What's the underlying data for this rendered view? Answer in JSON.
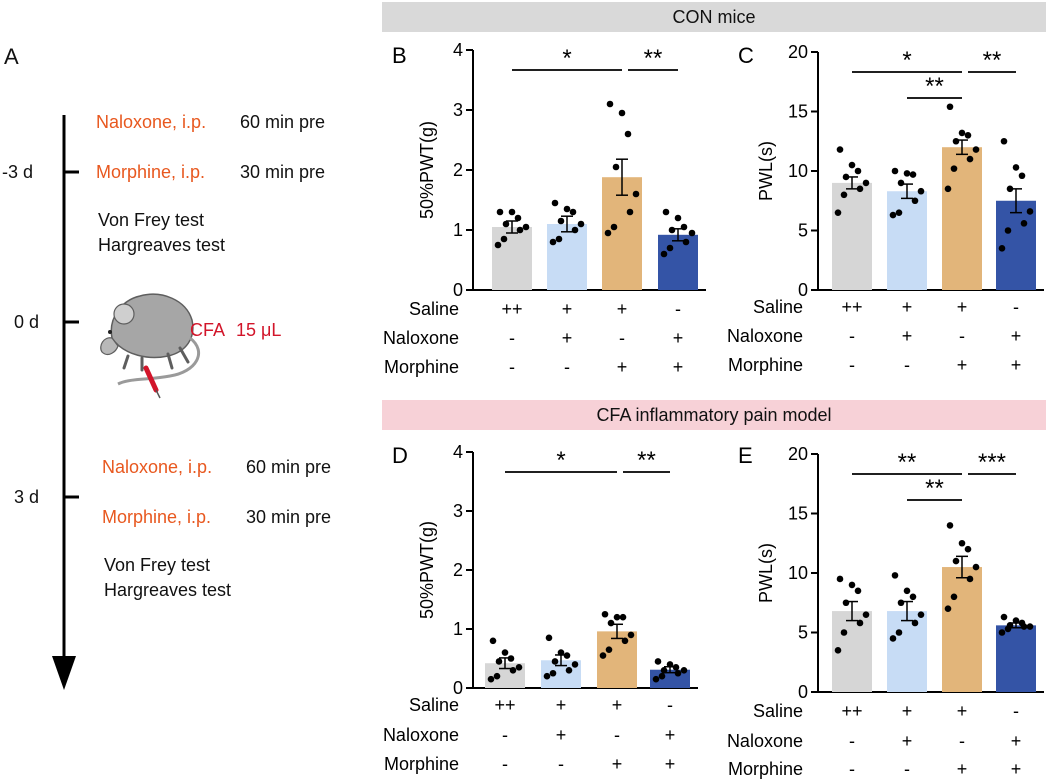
{
  "banners": {
    "con": "CON mice",
    "cfa": "CFA inflammatory pain model"
  },
  "panel_a": {
    "letter": "A",
    "days": [
      "-3 d",
      "0 d",
      "3 d"
    ],
    "block1": {
      "naloxone": "Naloxone, i.p.",
      "naloxone_time": "60 min pre",
      "morphine": "Morphine, i.p.",
      "morphine_time": "30 min pre",
      "test1": "Von Frey test",
      "test2": "Hargreaves test"
    },
    "cfa": {
      "label": "CFA",
      "dose": "15 μL"
    },
    "block2": {
      "naloxone": "Naloxone, i.p.",
      "naloxone_time": "60 min pre",
      "morphine": "Morphine, i.p.",
      "morphine_time": "30 min pre",
      "test1": "Von Frey test",
      "test2": "Hargreaves test"
    }
  },
  "colors": {
    "grey": "#d6d6d6",
    "lightblue": "#c7dcf5",
    "tan": "#e2b57a",
    "navy": "#3454a6",
    "orange_text": "#e8581f",
    "red_text": "#d2152a"
  },
  "chart_data": [
    {
      "id": "B",
      "letter": "B",
      "type": "bar",
      "ylabel": "50%PWT(g)",
      "ylim": [
        0,
        4
      ],
      "yticks": [
        "0",
        "1",
        "2",
        "3",
        "4"
      ],
      "values": [
        1.05,
        1.1,
        1.88,
        0.92
      ],
      "sem": [
        0.1,
        0.13,
        0.3,
        0.1
      ],
      "points": [
        [
          0.75,
          0.85,
          1.0,
          1.05,
          1.1,
          1.2,
          1.3,
          1.3
        ],
        [
          0.8,
          0.85,
          1.0,
          1.1,
          1.15,
          1.3,
          1.35,
          1.45
        ],
        [
          0.95,
          1.05,
          1.3,
          1.6,
          2.05,
          2.6,
          2.95,
          3.1
        ],
        [
          0.6,
          0.7,
          0.8,
          0.95,
          1.0,
          1.05,
          1.2,
          1.3
        ]
      ],
      "rows": [
        {
          "label": "Saline",
          "marks": [
            "++",
            "+",
            "+",
            "-"
          ]
        },
        {
          "label": "Naloxone",
          "marks": [
            "-",
            "+",
            "-",
            "+"
          ]
        },
        {
          "label": "Morphine",
          "marks": [
            "-",
            "-",
            "+",
            "+"
          ]
        }
      ],
      "sig": [
        {
          "from": 0,
          "to": 2,
          "label": "*",
          "level": 0
        },
        {
          "from": 2,
          "to": 3,
          "label": "**",
          "level": 0
        }
      ]
    },
    {
      "id": "C",
      "letter": "C",
      "type": "bar",
      "ylabel": "PWL(s)",
      "ylim": [
        0,
        20
      ],
      "yticks": [
        "0",
        "5",
        "10",
        "15",
        "20"
      ],
      "values": [
        9.0,
        8.3,
        12.0,
        7.5
      ],
      "sem": [
        0.5,
        0.6,
        0.6,
        1.0
      ],
      "points": [
        [
          6.5,
          8.0,
          8.5,
          9.0,
          9.5,
          10.0,
          10.5,
          11.8
        ],
        [
          6.3,
          6.5,
          7.5,
          8.3,
          9.0,
          9.7,
          9.8,
          10.0
        ],
        [
          8.5,
          10.2,
          11.0,
          11.8,
          12.5,
          13.0,
          13.2,
          15.4
        ],
        [
          3.5,
          5.0,
          5.6,
          6.6,
          8.5,
          9.6,
          10.3,
          12.5
        ]
      ],
      "rows": [
        {
          "label": "Saline",
          "marks": [
            "++",
            "+",
            "+",
            "-"
          ]
        },
        {
          "label": "Naloxone",
          "marks": [
            "-",
            "+",
            "-",
            "+"
          ]
        },
        {
          "label": "Morphine",
          "marks": [
            "-",
            "-",
            "+",
            "+"
          ]
        }
      ],
      "sig": [
        {
          "from": 0,
          "to": 2,
          "label": "*",
          "level": 0
        },
        {
          "from": 2,
          "to": 3,
          "label": "**",
          "level": 0
        },
        {
          "from": 1,
          "to": 2,
          "label": "**",
          "level": 1
        }
      ]
    },
    {
      "id": "D",
      "letter": "D",
      "type": "bar",
      "ylabel": "50%PWT(g)",
      "ylim": [
        0,
        4
      ],
      "yticks": [
        "0",
        "1",
        "2",
        "3",
        "4"
      ],
      "values": [
        0.42,
        0.47,
        0.96,
        0.31
      ],
      "sem": [
        0.09,
        0.09,
        0.12,
        0.05
      ],
      "points": [
        [
          0.15,
          0.2,
          0.3,
          0.35,
          0.45,
          0.5,
          0.6,
          0.8
        ],
        [
          0.2,
          0.25,
          0.3,
          0.4,
          0.45,
          0.55,
          0.6,
          0.85
        ],
        [
          0.55,
          0.65,
          0.8,
          0.9,
          1.1,
          1.2,
          1.2,
          1.25
        ],
        [
          0.15,
          0.2,
          0.25,
          0.3,
          0.3,
          0.35,
          0.4,
          0.45
        ]
      ],
      "rows": [
        {
          "label": "Saline",
          "marks": [
            "++",
            "+",
            "+",
            "-"
          ]
        },
        {
          "label": "Naloxone",
          "marks": [
            "-",
            "+",
            "-",
            "+"
          ]
        },
        {
          "label": "Morphine",
          "marks": [
            "-",
            "-",
            "+",
            "+"
          ]
        }
      ],
      "sig": [
        {
          "from": 0,
          "to": 2,
          "label": "*",
          "level": 0
        },
        {
          "from": 2,
          "to": 3,
          "label": "**",
          "level": 0
        }
      ]
    },
    {
      "id": "E",
      "letter": "E",
      "type": "bar",
      "ylabel": "PWL(s)",
      "ylim": [
        0,
        20
      ],
      "yticks": [
        "0",
        "5",
        "10",
        "15",
        "20"
      ],
      "values": [
        6.8,
        6.8,
        10.5,
        5.6
      ],
      "sem": [
        0.8,
        0.8,
        0.9,
        0.2
      ],
      "points": [
        [
          3.5,
          5.0,
          5.8,
          6.5,
          7.5,
          8.5,
          9.0,
          9.5
        ],
        [
          4.5,
          5.0,
          5.8,
          6.5,
          7.5,
          8.0,
          8.5,
          9.8
        ],
        [
          7.0,
          8.0,
          9.5,
          10.5,
          11.0,
          12.0,
          12.5,
          14.0
        ],
        [
          5.0,
          5.3,
          5.5,
          5.5,
          5.6,
          5.8,
          6.0,
          6.3
        ]
      ],
      "rows": [
        {
          "label": "Saline",
          "marks": [
            "++",
            "+",
            "+",
            "-"
          ]
        },
        {
          "label": "Naloxone",
          "marks": [
            "-",
            "+",
            "-",
            "+"
          ]
        },
        {
          "label": "Morphine",
          "marks": [
            "-",
            "-",
            "+",
            "+"
          ]
        }
      ],
      "sig": [
        {
          "from": 0,
          "to": 2,
          "label": "**",
          "level": 0
        },
        {
          "from": 2,
          "to": 3,
          "label": "***",
          "level": 0
        },
        {
          "from": 1,
          "to": 2,
          "label": "**",
          "level": 1
        }
      ]
    }
  ]
}
